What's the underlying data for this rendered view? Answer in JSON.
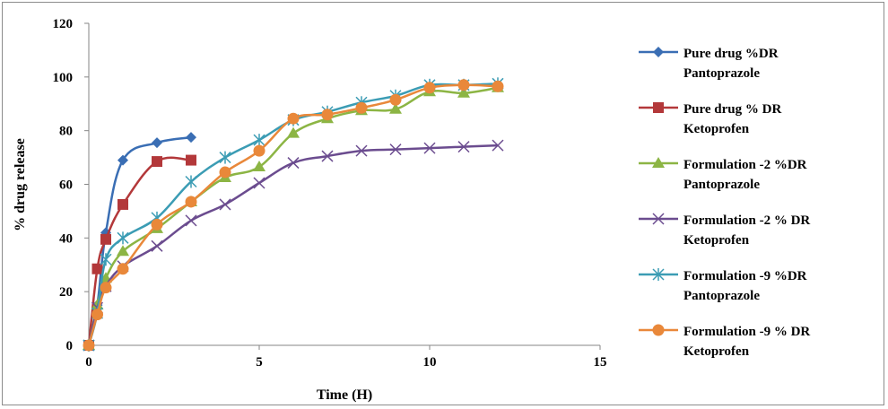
{
  "chart_data": {
    "type": "line",
    "title": "",
    "xlabel": "Time (H)",
    "ylabel": "% drug release",
    "xlim": [
      0,
      15
    ],
    "ylim": [
      0,
      120
    ],
    "xticks": [
      "0",
      "5",
      "10",
      "15"
    ],
    "yticks": [
      "0",
      "20",
      "40",
      "60",
      "80",
      "100",
      "120"
    ],
    "grid": false,
    "legend_position": "right",
    "series": [
      {
        "name": [
          "Pure drug %DR",
          "Pantoprazole"
        ],
        "color": "#3A6EB4",
        "marker": "diamond",
        "x": [
          0,
          0.25,
          0.5,
          1,
          2,
          3
        ],
        "y": [
          0,
          15,
          42,
          69,
          75.5,
          77.5
        ]
      },
      {
        "name": [
          "Pure drug % DR",
          "Ketoprofen"
        ],
        "color": "#B3383A",
        "marker": "square",
        "x": [
          0,
          0.25,
          0.5,
          1,
          2,
          3
        ],
        "y": [
          0,
          28.5,
          39.5,
          52.5,
          68.5,
          69
        ]
      },
      {
        "name": [
          "Formulation -2 %DR",
          "Pantoprazole"
        ],
        "color": "#8CB544",
        "marker": "triangle",
        "x": [
          0,
          0.25,
          0.5,
          1,
          2,
          3,
          4,
          5,
          6,
          7,
          8,
          9,
          10,
          11,
          12
        ],
        "y": [
          0,
          15,
          25,
          35,
          43.5,
          53.5,
          62.5,
          66.5,
          79,
          84.5,
          87.5,
          88,
          94.5,
          94,
          96
        ]
      },
      {
        "name": [
          "Formulation -2 % DR",
          "Ketoprofen"
        ],
        "color": "#6B4C8F",
        "marker": "x",
        "x": [
          0,
          0.25,
          0.5,
          1,
          2,
          3,
          4,
          5,
          6,
          7,
          8,
          9,
          10,
          11,
          12
        ],
        "y": [
          0,
          14,
          22,
          29.5,
          37,
          46.5,
          52.5,
          60.5,
          68,
          70.5,
          72.5,
          73,
          73.5,
          74,
          74.5
        ]
      },
      {
        "name": [
          "Formulation -9 %DR",
          "Pantoprazole"
        ],
        "color": "#3B9CB4",
        "marker": "asterisk",
        "x": [
          0,
          0.25,
          0.5,
          1,
          2,
          3,
          4,
          5,
          6,
          7,
          8,
          9,
          10,
          11,
          12
        ],
        "y": [
          0,
          12,
          32,
          40,
          47.5,
          61,
          70,
          76.5,
          84,
          87,
          90.5,
          93,
          97,
          97,
          97.5
        ]
      },
      {
        "name": [
          "Formulation -9 % DR",
          "Ketoprofen"
        ],
        "color": "#E9883A",
        "marker": "circle",
        "x": [
          0,
          0.25,
          0.5,
          1,
          2,
          3,
          4,
          5,
          6,
          7,
          8,
          9,
          10,
          11,
          12
        ],
        "y": [
          0,
          11.5,
          21.5,
          28.5,
          45,
          53.5,
          64.5,
          72.5,
          84.5,
          86,
          88.5,
          91.5,
          96,
          97,
          96.5
        ]
      }
    ]
  }
}
